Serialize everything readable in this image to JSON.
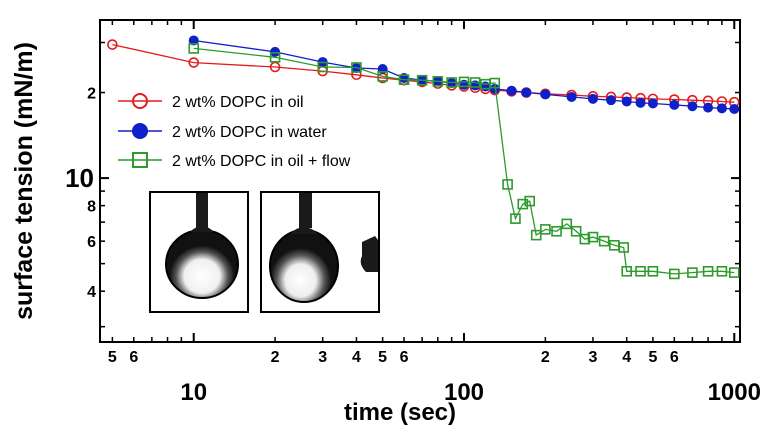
{
  "chart_data": {
    "type": "scatter",
    "xlabel": "time (sec)",
    "ylabel": "surface tension (mN/m)",
    "x_scale": "log",
    "y_scale": "log",
    "xlim": [
      4.5,
      1050
    ],
    "ylim": [
      2.65,
      36
    ],
    "x_major_ticks": [
      {
        "value": 10,
        "label": "10"
      },
      {
        "value": 100,
        "label": "100"
      },
      {
        "value": 1000,
        "label": "1000"
      }
    ],
    "x_minor_ticks": [
      {
        "value": 5,
        "label": "5"
      },
      {
        "value": 6,
        "label": "6"
      },
      {
        "value": 20,
        "label": "2"
      },
      {
        "value": 30,
        "label": "3"
      },
      {
        "value": 40,
        "label": "4"
      },
      {
        "value": 50,
        "label": "5"
      },
      {
        "value": 60,
        "label": "6"
      },
      {
        "value": 200,
        "label": "2"
      },
      {
        "value": 300,
        "label": "3"
      },
      {
        "value": 400,
        "label": "4"
      },
      {
        "value": 500,
        "label": "5"
      },
      {
        "value": 600,
        "label": "6"
      }
    ],
    "y_major_ticks": [
      {
        "value": 10,
        "label": "10"
      }
    ],
    "y_minor_ticks": [
      {
        "value": 4,
        "label": "4"
      },
      {
        "value": 6,
        "label": "6"
      },
      {
        "value": 8,
        "label": "8"
      },
      {
        "value": 20,
        "label": "2"
      }
    ],
    "grid": false,
    "legend_position": "upper-left",
    "series": [
      {
        "name": "2 wt% DOPC in oil",
        "color": "#e41a1c",
        "marker": "open-circle",
        "x": [
          5,
          10,
          20,
          30,
          40,
          50,
          60,
          70,
          80,
          90,
          100,
          110,
          120,
          130,
          150,
          170,
          200,
          250,
          300,
          350,
          400,
          450,
          500,
          600,
          700,
          800,
          900,
          1000
        ],
        "y": [
          29.5,
          25.5,
          24.6,
          23.8,
          23.1,
          22.5,
          22.1,
          21.8,
          21.5,
          21.2,
          21.0,
          20.8,
          20.6,
          20.4,
          20.2,
          20.0,
          19.8,
          19.6,
          19.4,
          19.3,
          19.2,
          19.1,
          19.0,
          18.9,
          18.8,
          18.7,
          18.6,
          18.5
        ]
      },
      {
        "name": "2 wt% DOPC in water",
        "color": "#1020c8",
        "marker": "filled-circle",
        "x": [
          10,
          20,
          30,
          40,
          50,
          60,
          70,
          80,
          90,
          100,
          110,
          120,
          130,
          150,
          170,
          200,
          250,
          300,
          350,
          400,
          450,
          500,
          600,
          700,
          800,
          900,
          1000
        ],
        "y": [
          30.5,
          27.8,
          25.6,
          24.4,
          24.2,
          22.5,
          22.1,
          21.9,
          21.6,
          21.3,
          21.2,
          21.0,
          20.6,
          20.3,
          20.0,
          19.7,
          19.3,
          19.0,
          18.8,
          18.6,
          18.4,
          18.3,
          18.1,
          17.9,
          17.7,
          17.6,
          17.5
        ]
      },
      {
        "name": "2 wt% DOPC in oil + flow",
        "color": "#2e9a2e",
        "marker": "open-square",
        "x": [
          10,
          20,
          30,
          40,
          50,
          60,
          70,
          80,
          90,
          100,
          110,
          120,
          130,
          145,
          155,
          165,
          175,
          185,
          200,
          220,
          240,
          260,
          280,
          300,
          330,
          360,
          390,
          400,
          450,
          500,
          600,
          700,
          800,
          900,
          1000
        ],
        "y": [
          28.6,
          26.6,
          24.6,
          24.5,
          22.8,
          22.2,
          22.1,
          21.9,
          21.7,
          21.8,
          21.7,
          21.4,
          21.6,
          9.5,
          7.2,
          8.1,
          8.3,
          6.3,
          6.6,
          6.5,
          6.9,
          6.5,
          6.1,
          6.2,
          6.0,
          5.8,
          5.7,
          4.7,
          4.7,
          4.7,
          4.6,
          4.65,
          4.7,
          4.7,
          4.65
        ]
      }
    ]
  },
  "legend": {
    "items": [
      {
        "label": "2 wt% DOPC in oil"
      },
      {
        "label": "2 wt% DOPC in water"
      },
      {
        "label": "2 wt% DOPC in oil + flow"
      }
    ]
  },
  "insets": [
    {
      "name": "droplet-image-1"
    },
    {
      "name": "droplet-image-2"
    }
  ]
}
